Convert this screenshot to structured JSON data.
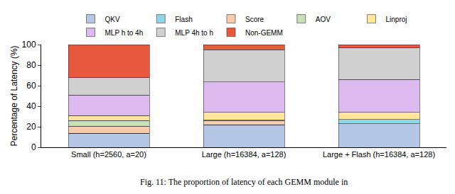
{
  "chart_data": {
    "type": "bar",
    "stacked": true,
    "categories": [
      "Small (h=2560, a=20)",
      "Large (h=16384, a=128)",
      "Large + Flash (h=16384, a=128)"
    ],
    "series": [
      {
        "name": "QKV",
        "color": "#b4c7e7",
        "values": [
          13.5,
          22,
          23
        ]
      },
      {
        "name": "Flash",
        "color": "#8fd6e6",
        "values": [
          0,
          0,
          4
        ]
      },
      {
        "name": "Score",
        "color": "#f8cbad",
        "values": [
          7,
          4,
          0
        ]
      },
      {
        "name": "AOV",
        "color": "#c5e0b4",
        "values": [
          5.5,
          0.5,
          0
        ]
      },
      {
        "name": "Linproj",
        "color": "#ffe699",
        "values": [
          5,
          7.5,
          7
        ]
      },
      {
        "name": "MLP h to 4h",
        "color": "#dcbaf0",
        "values": [
          20,
          29.5,
          32
        ]
      },
      {
        "name": "MLP 4h to h",
        "color": "#d0d0d0",
        "values": [
          17,
          31.5,
          31
        ]
      },
      {
        "name": "Non-GEMM",
        "color": "#e8583f",
        "values": [
          32,
          5,
          3
        ]
      }
    ],
    "ylabel": "Percentage of Latency (%)",
    "ylim": [
      0,
      100
    ],
    "yticks": [
      0,
      20,
      40,
      60,
      80,
      100
    ],
    "grid": false,
    "legend": "top",
    "annotations": [
      "Fig. 11: The proportion of latency of each GEMM module in"
    ]
  }
}
